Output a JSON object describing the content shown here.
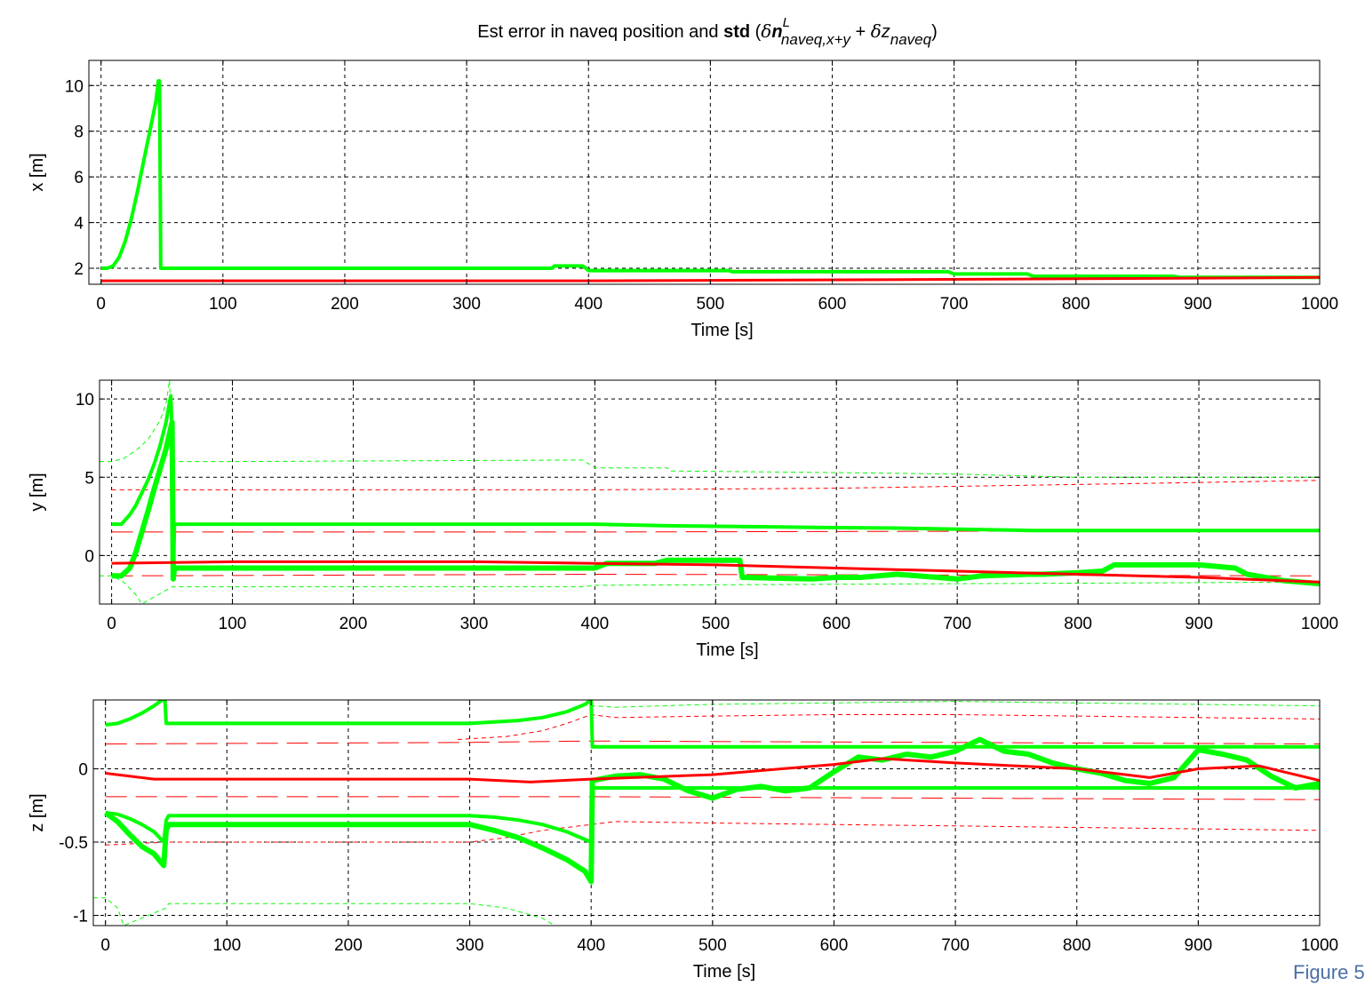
{
  "figure": {
    "title_parts": {
      "prefix": "Est error in naveq position and ",
      "bold": "std",
      "open": " (",
      "delta1": "δ",
      "n": "n",
      "sup": "L",
      "sub1": "naveq,x+y",
      "plus": " + ",
      "delta2": "δ",
      "z": "z",
      "sub2": "naveq",
      "close": ")"
    },
    "corner_text": "Figure 5"
  },
  "colors": {
    "green": "#00ff00",
    "red": "#ff0000",
    "grid": "#000000",
    "background": "#ffffff"
  },
  "chart_data": [
    {
      "type": "line",
      "xlabel": "Time [s]",
      "ylabel": "x [m]",
      "xlim": [
        -10,
        1000
      ],
      "ylim": [
        1.3,
        11.1
      ],
      "xticks": [
        0,
        100,
        200,
        300,
        400,
        500,
        600,
        700,
        800,
        900,
        1000
      ],
      "yticks": [
        2,
        4,
        6,
        8,
        10
      ],
      "xtick_labels": [
        "0",
        "100",
        "200",
        "300",
        "400",
        "500",
        "600",
        "700",
        "800",
        "900",
        "1000"
      ],
      "ytick_labels": [
        "2",
        "4",
        "6",
        "8",
        "10"
      ],
      "grid": true,
      "series": [
        {
          "color": "green",
          "style": "solid",
          "width": 4,
          "x": [
            0,
            5,
            10,
            15,
            20,
            25,
            30,
            35,
            40,
            45,
            47,
            48,
            49,
            60,
            370,
            372,
            395,
            398,
            400,
            515,
            518,
            695,
            700,
            760,
            765,
            880,
            885,
            1000
          ],
          "y": [
            2.0,
            2.0,
            2.1,
            2.5,
            3.2,
            4.2,
            5.4,
            6.7,
            8.0,
            9.3,
            10.2,
            10.2,
            2.0,
            2.0,
            2.0,
            2.1,
            2.1,
            2.0,
            1.9,
            1.9,
            1.85,
            1.85,
            1.75,
            1.75,
            1.65,
            1.65,
            1.6,
            1.6
          ]
        },
        {
          "color": "red",
          "style": "solid",
          "width": 3,
          "x": [
            0,
            400,
            640,
            950,
            1000
          ],
          "y": [
            1.45,
            1.45,
            1.5,
            1.58,
            1.6
          ]
        }
      ]
    },
    {
      "type": "line",
      "xlabel": "Time [s]",
      "ylabel": "y [m]",
      "xlim": [
        -10,
        1000
      ],
      "ylim": [
        -3.1,
        11.2
      ],
      "xticks": [
        0,
        100,
        200,
        300,
        400,
        500,
        600,
        700,
        800,
        900,
        1000
      ],
      "yticks": [
        0,
        5,
        10
      ],
      "xtick_labels": [
        "0",
        "100",
        "200",
        "300",
        "400",
        "500",
        "600",
        "700",
        "800",
        "900",
        "1000"
      ],
      "ytick_labels": [
        "0",
        "5",
        "10"
      ],
      "grid": true,
      "series": [
        {
          "color": "green",
          "style": "dashed-thin",
          "width": 1,
          "x": [
            -10,
            0,
            10,
            20,
            30,
            40,
            45,
            48,
            50,
            100,
            390,
            400,
            460,
            462,
            600,
            700,
            800,
            900,
            1000
          ],
          "y": [
            6.0,
            6.0,
            6.2,
            6.7,
            7.4,
            8.6,
            9.7,
            11.2,
            6.0,
            6.0,
            6.1,
            5.6,
            5.6,
            5.4,
            5.3,
            5.2,
            5.0,
            5.0,
            5.0
          ]
        },
        {
          "color": "green",
          "style": "dashed-thin",
          "width": 1,
          "x": [
            -10,
            0,
            10,
            20,
            25,
            50,
            100,
            390,
            400,
            700,
            1000
          ],
          "y": [
            -1.3,
            -1.3,
            -1.7,
            -2.5,
            -3.1,
            -2.0,
            -2.0,
            -2.0,
            -1.9,
            -1.8,
            -1.7
          ]
        },
        {
          "color": "red",
          "style": "dashed-thin",
          "width": 1,
          "x": [
            0,
            400,
            600,
            850,
            1000
          ],
          "y": [
            4.2,
            4.2,
            4.3,
            4.6,
            4.8
          ]
        },
        {
          "color": "red",
          "style": "dashed-long",
          "width": 1,
          "x": [
            0,
            400,
            1000
          ],
          "y": [
            1.5,
            1.5,
            1.6
          ]
        },
        {
          "color": "red",
          "style": "dashed-long",
          "width": 1,
          "x": [
            0,
            400,
            1000
          ],
          "y": [
            -1.3,
            -1.2,
            -1.3
          ]
        },
        {
          "color": "green",
          "style": "solid",
          "width": 4,
          "x": [
            0,
            8,
            15,
            20,
            25,
            30,
            35,
            40,
            45,
            48,
            49,
            50,
            51,
            52,
            53,
            100,
            400,
            460,
            580,
            650,
            760,
            1000
          ],
          "y": [
            2.0,
            2.0,
            2.6,
            3.2,
            4.0,
            4.8,
            5.8,
            7.0,
            8.5,
            9.8,
            10.2,
            8.0,
            -1.5,
            2.0,
            2.0,
            2.0,
            2.0,
            1.9,
            1.8,
            1.75,
            1.6,
            1.6
          ]
        },
        {
          "color": "green",
          "style": "solid",
          "width": 6,
          "x": [
            0,
            8,
            15,
            20,
            25,
            30,
            35,
            40,
            45,
            48,
            50,
            51,
            52,
            53,
            100,
            300,
            380,
            400,
            410,
            450,
            460,
            500,
            520,
            522,
            580,
            600,
            620,
            650,
            700,
            720,
            760,
            770,
            800,
            820,
            830,
            900,
            930,
            940,
            970,
            1000
          ],
          "y": [
            -1.3,
            -1.3,
            -0.8,
            0.2,
            1.5,
            2.8,
            4.2,
            5.5,
            6.8,
            7.8,
            8.5,
            -1.5,
            -0.8,
            -0.8,
            -0.8,
            -0.8,
            -0.8,
            -0.8,
            -0.5,
            -0.5,
            -0.3,
            -0.3,
            -0.3,
            -1.4,
            -1.5,
            -1.4,
            -1.4,
            -1.2,
            -1.5,
            -1.3,
            -1.2,
            -1.2,
            -1.1,
            -1.0,
            -0.6,
            -0.6,
            -0.8,
            -1.2,
            -1.6,
            -1.8
          ]
        },
        {
          "color": "red",
          "style": "solid",
          "width": 3,
          "x": [
            0,
            100,
            300,
            400,
            500,
            600,
            700,
            800,
            900,
            1000
          ],
          "y": [
            -0.5,
            -0.4,
            -0.4,
            -0.5,
            -0.6,
            -0.8,
            -1.0,
            -1.2,
            -1.4,
            -1.7
          ]
        }
      ]
    },
    {
      "type": "line",
      "xlabel": "Time [s]",
      "ylabel": "z [m]",
      "xlim": [
        -10,
        1000
      ],
      "ylim": [
        -1.07,
        0.47
      ],
      "xticks": [
        0,
        100,
        200,
        300,
        400,
        500,
        600,
        700,
        800,
        900,
        1000
      ],
      "yticks": [
        -1,
        -0.5,
        0
      ],
      "xtick_labels": [
        "0",
        "100",
        "200",
        "300",
        "400",
        "500",
        "600",
        "700",
        "800",
        "900",
        "1000"
      ],
      "ytick_labels": [
        "-1",
        "-0.5",
        "0"
      ],
      "grid": true,
      "series": [
        {
          "color": "green",
          "style": "dashed-thin",
          "width": 1,
          "x": [
            400,
            402,
            420,
            500,
            600,
            700,
            800,
            900,
            1000
          ],
          "y": [
            0.44,
            0.43,
            0.42,
            0.44,
            0.45,
            0.46,
            0.45,
            0.44,
            0.43
          ]
        },
        {
          "color": "green",
          "style": "dashed-thin",
          "width": 1,
          "x": [
            -10,
            0,
            10,
            15,
            50,
            52,
            300,
            330,
            360,
            370
          ],
          "y": [
            -0.88,
            -0.88,
            -0.95,
            -1.07,
            -0.95,
            -0.92,
            -0.92,
            -0.95,
            -1.02,
            -1.07
          ]
        },
        {
          "color": "red",
          "style": "dashed-thin",
          "width": 1,
          "x": [
            290,
            330,
            360,
            380,
            400,
            420,
            500,
            600,
            700,
            800,
            900,
            1000
          ],
          "y": [
            0.2,
            0.22,
            0.26,
            0.31,
            0.37,
            0.35,
            0.36,
            0.37,
            0.37,
            0.36,
            0.35,
            0.34
          ]
        },
        {
          "color": "red",
          "style": "dashed-thin",
          "width": 1,
          "x": [
            0,
            50,
            300,
            330,
            360,
            400,
            420,
            500,
            600,
            700,
            800,
            900,
            1000
          ],
          "y": [
            -0.52,
            -0.5,
            -0.5,
            -0.47,
            -0.42,
            -0.38,
            -0.36,
            -0.37,
            -0.38,
            -0.39,
            -0.4,
            -0.41,
            -0.42
          ]
        },
        {
          "color": "red",
          "style": "dashed-long",
          "width": 1,
          "x": [
            0,
            300,
            400,
            1000
          ],
          "y": [
            0.17,
            0.18,
            0.19,
            0.17
          ]
        },
        {
          "color": "red",
          "style": "dashed-long",
          "width": 1,
          "x": [
            0,
            300,
            400,
            1000
          ],
          "y": [
            -0.19,
            -0.19,
            -0.19,
            -0.21
          ]
        },
        {
          "color": "green",
          "style": "solid",
          "width": 4,
          "x": [
            0,
            10,
            20,
            30,
            40,
            45,
            47
          ],
          "y": [
            0.3,
            0.31,
            0.34,
            0.38,
            0.43,
            0.46,
            0.47
          ]
        },
        {
          "color": "green",
          "style": "solid",
          "width": 4,
          "x": [
            49,
            50,
            52,
            300,
            320,
            340,
            360,
            380,
            395,
            400,
            401,
            402,
            1000
          ],
          "y": [
            0.47,
            0.31,
            0.31,
            0.31,
            0.32,
            0.33,
            0.35,
            0.39,
            0.44,
            0.47,
            0.15,
            0.15,
            0.15
          ]
        },
        {
          "color": "green",
          "style": "solid",
          "width": 4,
          "x": [
            0,
            10,
            20,
            30,
            40,
            48,
            50,
            52,
            300,
            320,
            340,
            360,
            380,
            400,
            401,
            402,
            1000
          ],
          "y": [
            -0.3,
            -0.31,
            -0.34,
            -0.38,
            -0.43,
            -0.5,
            -0.35,
            -0.32,
            -0.32,
            -0.33,
            -0.35,
            -0.38,
            -0.43,
            -0.5,
            -0.15,
            -0.13,
            -0.13
          ]
        },
        {
          "color": "green",
          "style": "solid",
          "width": 6,
          "x": [
            0,
            10,
            20,
            30,
            40,
            48,
            50,
            52,
            300,
            320,
            340,
            360,
            380,
            395,
            400,
            401,
            420,
            440,
            460,
            480,
            500,
            520,
            540,
            560,
            580,
            600,
            620,
            640,
            660,
            680,
            700,
            720,
            740,
            760,
            780,
            800,
            820,
            840,
            860,
            880,
            900,
            920,
            940,
            960,
            980,
            1000
          ],
          "y": [
            -0.3,
            -0.36,
            -0.45,
            -0.53,
            -0.58,
            -0.66,
            -0.42,
            -0.38,
            -0.38,
            -0.42,
            -0.47,
            -0.54,
            -0.62,
            -0.7,
            -0.77,
            -0.08,
            -0.05,
            -0.04,
            -0.07,
            -0.15,
            -0.2,
            -0.14,
            -0.12,
            -0.15,
            -0.13,
            -0.02,
            0.08,
            0.06,
            0.1,
            0.08,
            0.12,
            0.2,
            0.12,
            0.1,
            0.04,
            0.0,
            -0.03,
            -0.08,
            -0.1,
            -0.06,
            0.13,
            0.1,
            0.06,
            -0.05,
            -0.13,
            -0.1
          ]
        },
        {
          "color": "red",
          "style": "solid",
          "width": 3,
          "x": [
            0,
            40,
            300,
            350,
            400,
            500,
            600,
            640,
            700,
            800,
            860,
            900,
            950,
            1000
          ],
          "y": [
            -0.03,
            -0.07,
            -0.07,
            -0.09,
            -0.07,
            -0.04,
            0.03,
            0.07,
            0.04,
            0.0,
            -0.06,
            0.0,
            0.02,
            -0.08
          ]
        }
      ]
    }
  ]
}
